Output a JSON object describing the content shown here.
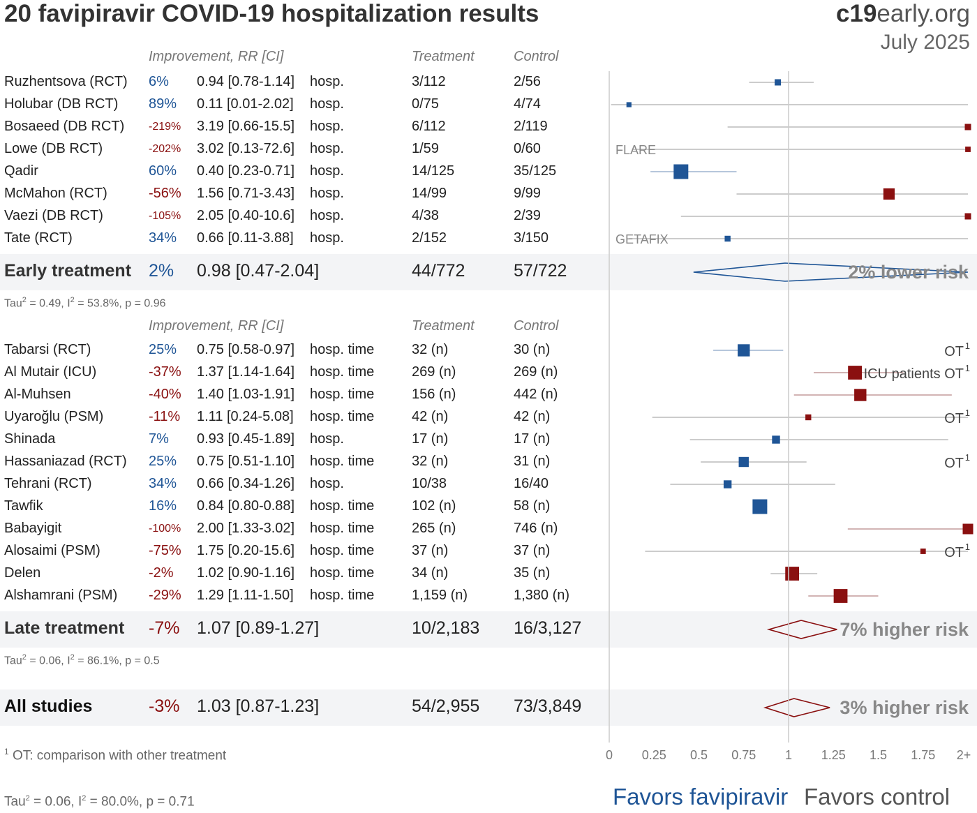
{
  "header": {
    "title": "20 favipiravir COVID-19 hospitalization results",
    "brand_bold": "c19",
    "brand_rest": "early.org",
    "date": "July 2025"
  },
  "columns": {
    "improvement": "Improvement, RR [CI]",
    "treatment": "Treatment",
    "control": "Control"
  },
  "colors": {
    "positive": "#1f5596",
    "negative": "#8a1010",
    "ci_line": "#bbbbbb",
    "band": "#f3f4f6"
  },
  "chart_data": {
    "type": "forest",
    "x_ticks": [
      "0",
      "0.25",
      "0.5",
      "0.75",
      "1",
      "1.25",
      "1.5",
      "1.75",
      "2+"
    ],
    "xlim": [
      0,
      2
    ],
    "reference_line": 1,
    "groups": [
      {
        "studies": [
          {
            "name": "Ruzhentsova (RCT)",
            "improvement": "6%",
            "rr_ci": "0.94 [0.78-1.14]",
            "outcome": "hosp.",
            "treatment": "3/112",
            "control": "2/56",
            "rr": 0.94,
            "lo": 0.78,
            "hi": 1.14,
            "weight": 1,
            "label": "",
            "small_pct": false
          },
          {
            "name": "Holubar (DB RCT)",
            "improvement": "89%",
            "rr_ci": "0.11 [0.01-2.02]",
            "outcome": "hosp.",
            "treatment": "0/75",
            "control": "4/74",
            "rr": 0.11,
            "lo": 0.01,
            "hi": 2.02,
            "weight": 0.7,
            "label": "",
            "small_pct": false
          },
          {
            "name": "Bosaeed (DB RCT)",
            "improvement": "-219%",
            "rr_ci": "3.19 [0.66-15.5]",
            "outcome": "hosp.",
            "treatment": "6/112",
            "control": "2/119",
            "rr": 3.19,
            "lo": 0.66,
            "hi": 15.5,
            "weight": 1,
            "label": "",
            "small_pct": true
          },
          {
            "name": "Lowe (DB RCT)",
            "improvement": "-202%",
            "rr_ci": "3.02 [0.13-72.6]",
            "outcome": "hosp.",
            "treatment": "1/59",
            "control": "0/60",
            "rr": 3.02,
            "lo": 0.13,
            "hi": 72.6,
            "weight": 0.8,
            "label": "FLARE",
            "small_pct": true
          },
          {
            "name": "Qadir",
            "improvement": "60%",
            "rr_ci": "0.40 [0.23-0.71]",
            "outcome": "hosp.",
            "treatment": "14/125",
            "control": "35/125",
            "rr": 0.4,
            "lo": 0.23,
            "hi": 0.71,
            "weight": 3,
            "label": "",
            "small_pct": false
          },
          {
            "name": "McMahon (RCT)",
            "improvement": "-56%",
            "rr_ci": "1.56 [0.71-3.43]",
            "outcome": "hosp.",
            "treatment": "14/99",
            "control": "9/99",
            "rr": 1.56,
            "lo": 0.71,
            "hi": 3.43,
            "weight": 2.2,
            "label": "",
            "small_pct": false
          },
          {
            "name": "Vaezi (DB RCT)",
            "improvement": "-105%",
            "rr_ci": "2.05 [0.40-10.6]",
            "outcome": "hosp.",
            "treatment": "4/38",
            "control": "2/39",
            "rr": 2.05,
            "lo": 0.4,
            "hi": 10.6,
            "weight": 1,
            "label": "",
            "small_pct": true
          },
          {
            "name": "Tate (RCT)",
            "improvement": "34%",
            "rr_ci": "0.66 [0.11-3.88]",
            "outcome": "hosp.",
            "treatment": "2/152",
            "control": "3/150",
            "rr": 0.66,
            "lo": 0.11,
            "hi": 3.88,
            "weight": 0.9,
            "label": "GETAFIX",
            "small_pct": false
          }
        ],
        "summary": {
          "name": "Early treatment",
          "improvement": "2%",
          "rr_ci": "0.98 [0.47-2.04]",
          "treatment": "44/772",
          "control": "57/722",
          "rr": 0.98,
          "lo": 0.47,
          "hi": 2.04,
          "risk_text": "2% lower risk",
          "stat_pre": "Tau",
          "stat_post": " = 0.49, I",
          "stat_tail": " = 53.8%, p = 0.96"
        }
      },
      {
        "studies": [
          {
            "name": "Tabarsi (RCT)",
            "improvement": "25%",
            "rr_ci": "0.75 [0.58-0.97]",
            "outcome": "hosp. time",
            "treatment": "32 (n)",
            "control": "30 (n)",
            "rr": 0.75,
            "lo": 0.58,
            "hi": 0.97,
            "weight": 2.4,
            "label": "OT",
            "small_pct": false
          },
          {
            "name": "Al Mutair (ICU)",
            "improvement": "-37%",
            "rr_ci": "1.37 [1.14-1.64]",
            "outcome": "hosp. time",
            "treatment": "269 (n)",
            "control": "269 (n)",
            "rr": 1.37,
            "lo": 1.14,
            "hi": 1.64,
            "weight": 2.8,
            "label": "ICU patients OT",
            "small_pct": false
          },
          {
            "name": "Al-Muhsen",
            "improvement": "-40%",
            "rr_ci": "1.40 [1.03-1.91]",
            "outcome": "hosp. time",
            "treatment": "156 (n)",
            "control": "442 (n)",
            "rr": 1.4,
            "lo": 1.03,
            "hi": 1.91,
            "weight": 2.4,
            "label": "",
            "small_pct": false
          },
          {
            "name": "Uyaroğlu (PSM)",
            "improvement": "-11%",
            "rr_ci": "1.11 [0.24-5.08]",
            "outcome": "hosp. time",
            "treatment": "42 (n)",
            "control": "42 (n)",
            "rr": 1.11,
            "lo": 0.24,
            "hi": 5.08,
            "weight": 0.9,
            "label": "OT",
            "small_pct": false
          },
          {
            "name": "Shinada",
            "improvement": "7%",
            "rr_ci": "0.93 [0.45-1.89]",
            "outcome": "hosp.",
            "treatment": "17 (n)",
            "control": "17 (n)",
            "rr": 0.93,
            "lo": 0.45,
            "hi": 1.89,
            "weight": 1.4,
            "label": "",
            "small_pct": false
          },
          {
            "name": "Hassaniazad (RCT)",
            "improvement": "25%",
            "rr_ci": "0.75 [0.51-1.10]",
            "outcome": "hosp. time",
            "treatment": "32 (n)",
            "control": "31 (n)",
            "rr": 0.75,
            "lo": 0.51,
            "hi": 1.1,
            "weight": 1.9,
            "label": "OT",
            "small_pct": false
          },
          {
            "name": "Tehrani (RCT)",
            "improvement": "34%",
            "rr_ci": "0.66 [0.34-1.26]",
            "outcome": "hosp.",
            "treatment": "10/38",
            "control": "16/40",
            "rr": 0.66,
            "lo": 0.34,
            "hi": 1.26,
            "weight": 1.4,
            "label": "",
            "small_pct": false
          },
          {
            "name": "Tawfik",
            "improvement": "16%",
            "rr_ci": "0.84 [0.80-0.88]",
            "outcome": "hosp. time",
            "treatment": "102 (n)",
            "control": "58 (n)",
            "rr": 0.84,
            "lo": 0.8,
            "hi": 0.88,
            "weight": 3,
            "label": "",
            "small_pct": false
          },
          {
            "name": "Babayigit",
            "improvement": "-100%",
            "rr_ci": "2.00 [1.33-3.02]",
            "outcome": "hosp. time",
            "treatment": "265 (n)",
            "control": "746 (n)",
            "rr": 2.0,
            "lo": 1.33,
            "hi": 3.02,
            "weight": 2,
            "label": "",
            "small_pct": true
          },
          {
            "name": "Alosaimi (PSM)",
            "improvement": "-75%",
            "rr_ci": "1.75 [0.20-15.6]",
            "outcome": "hosp. time",
            "treatment": "37 (n)",
            "control": "37 (n)",
            "rr": 1.75,
            "lo": 0.2,
            "hi": 15.6,
            "weight": 0.8,
            "label": "OT",
            "small_pct": false
          },
          {
            "name": "Delen",
            "improvement": "-2%",
            "rr_ci": "1.02 [0.90-1.16]",
            "outcome": "hosp. time",
            "treatment": "34 (n)",
            "control": "35 (n)",
            "rr": 1.02,
            "lo": 0.9,
            "hi": 1.16,
            "weight": 2.8,
            "label": "",
            "small_pct": false
          },
          {
            "name": "Alshamrani (PSM)",
            "improvement": "-29%",
            "rr_ci": "1.29 [1.11-1.50]",
            "outcome": "hosp. time",
            "treatment": "1,159 (n)",
            "control": "1,380 (n)",
            "rr": 1.29,
            "lo": 1.11,
            "hi": 1.5,
            "weight": 2.8,
            "label": "",
            "small_pct": false
          }
        ],
        "summary": {
          "name": "Late treatment",
          "improvement": "-7%",
          "rr_ci": "1.07 [0.89-1.27]",
          "treatment": "10/2,183",
          "control": "16/3,127",
          "rr": 1.07,
          "lo": 0.89,
          "hi": 1.27,
          "risk_text": "7% higher risk",
          "stat_pre": "Tau",
          "stat_post": " = 0.06, I",
          "stat_tail": " = 86.1%, p = 0.5"
        }
      }
    ],
    "overall": {
      "name": "All studies",
      "improvement": "-3%",
      "rr_ci": "1.03 [0.87-1.23]",
      "treatment": "54/2,955",
      "control": "73/3,849",
      "rr": 1.03,
      "lo": 0.87,
      "hi": 1.23,
      "risk_text": "3% higher risk",
      "stat_pre": "Tau",
      "stat_post": " = 0.06, I",
      "stat_tail": " = 80.0%, p = 0.71"
    }
  },
  "footnote": {
    "sup": "1",
    "text": " OT: comparison with other treatment"
  },
  "favors": {
    "left": "Favors favipiravir",
    "right": "Favors control"
  }
}
